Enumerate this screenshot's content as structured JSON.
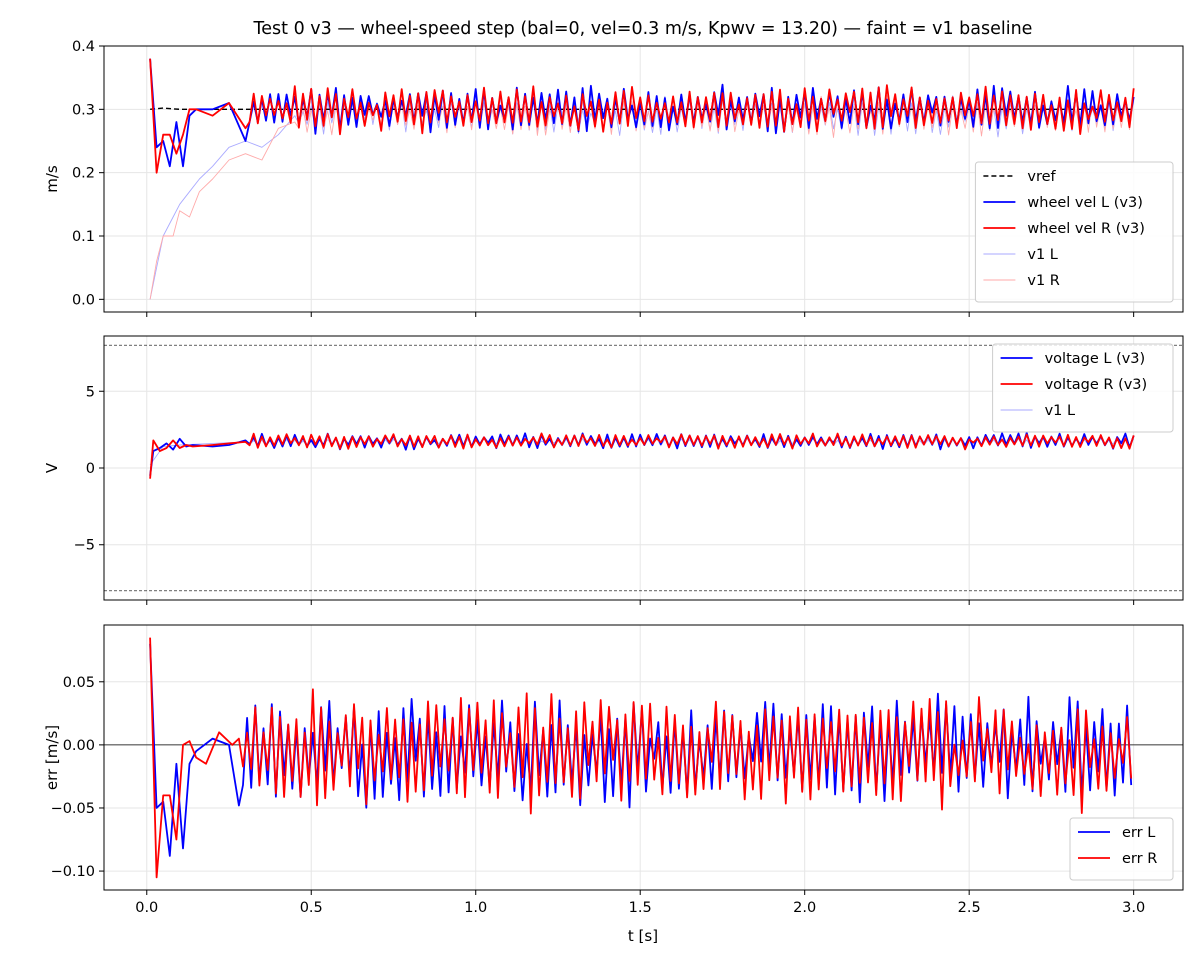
{
  "chart_data": {
    "title": "Test 0 v3 — wheel-speed step (bal=0, vel=0.3 m/s, Kpwv = 13.20) — faint = v1 baseline",
    "x_label": "t [s]",
    "x_range": [
      -0.13,
      3.15
    ],
    "x_ticks": [
      0.0,
      0.5,
      1.0,
      1.5,
      2.0,
      2.5,
      3.0
    ],
    "x_tick_labels": [
      "0.0",
      "0.5",
      "1.0",
      "1.5",
      "2.0",
      "2.5",
      "3.0"
    ],
    "colors": {
      "blue": "#0000ff",
      "red": "#ff0000",
      "faint_blue": "#aaaaff",
      "faint_red": "#ffaaaa",
      "black": "#000000",
      "grid": "#e6e6e6"
    },
    "panels": [
      {
        "type": "line",
        "ylabel": "m/s",
        "ylim": [
          -0.02,
          0.4
        ],
        "y_ticks": [
          0.0,
          0.1,
          0.2,
          0.3,
          0.4
        ],
        "y_tick_labels": [
          "0.0",
          "0.1",
          "0.2",
          "0.3",
          "0.4"
        ],
        "legend_position": "lower-right",
        "legend": [
          "vref",
          "wheel vel L (v3)",
          "wheel vel R (v3)",
          "v1 L",
          "v1 R"
        ],
        "series": [
          {
            "name": "vref",
            "color": "#000000",
            "style": "dashed",
            "x": [
              0.01,
              0.05,
              0.1,
              0.2,
              0.3,
              3.0
            ],
            "y": [
              0.3,
              0.302,
              0.3,
              0.3,
              0.3,
              0.3
            ]
          },
          {
            "name": "wheel vel L (v3)",
            "color": "#0000ff",
            "width": 1.8,
            "x": [
              0.01,
              0.03,
              0.05,
              0.07,
              0.09,
              0.11,
              0.13,
              0.15,
              0.2,
              0.25,
              0.3
            ],
            "y": [
              0.38,
              0.24,
              0.25,
              0.21,
              0.28,
              0.21,
              0.29,
              0.3,
              0.3,
              0.31,
              0.25
            ],
            "osc": {
              "t0": 0.3,
              "t1": 3.0,
              "dt": 0.0125,
              "center": 0.3,
              "amp": 0.032,
              "seed": 11
            }
          },
          {
            "name": "wheel vel R (v3)",
            "color": "#ff0000",
            "width": 1.8,
            "x": [
              0.01,
              0.03,
              0.05,
              0.07,
              0.09,
              0.11,
              0.13,
              0.15,
              0.2,
              0.25,
              0.3
            ],
            "y": [
              0.38,
              0.2,
              0.26,
              0.26,
              0.23,
              0.26,
              0.3,
              0.3,
              0.29,
              0.31,
              0.27
            ],
            "osc": {
              "t0": 0.3,
              "t1": 3.0,
              "dt": 0.0125,
              "center": 0.3,
              "amp": 0.034,
              "seed": 23
            }
          },
          {
            "name": "v1 L",
            "color": "#aaaaff",
            "width": 0.9,
            "x": [
              0.01,
              0.03,
              0.05,
              0.08,
              0.1,
              0.13,
              0.16,
              0.2,
              0.25,
              0.3,
              0.35,
              0.4,
              0.45
            ],
            "y": [
              0.0,
              0.05,
              0.1,
              0.13,
              0.15,
              0.17,
              0.19,
              0.21,
              0.24,
              0.25,
              0.24,
              0.26,
              0.29
            ],
            "osc": {
              "t0": 0.45,
              "t1": 3.0,
              "dt": 0.0125,
              "center": 0.29,
              "amp": 0.028,
              "seed": 37
            }
          },
          {
            "name": "v1 R",
            "color": "#ffaaaa",
            "width": 0.9,
            "x": [
              0.01,
              0.03,
              0.05,
              0.08,
              0.1,
              0.13,
              0.16,
              0.2,
              0.25,
              0.3,
              0.35,
              0.4,
              0.45
            ],
            "y": [
              0.0,
              0.06,
              0.1,
              0.1,
              0.14,
              0.13,
              0.17,
              0.19,
              0.22,
              0.23,
              0.22,
              0.27,
              0.28
            ],
            "osc": {
              "t0": 0.45,
              "t1": 3.0,
              "dt": 0.0125,
              "center": 0.29,
              "amp": 0.028,
              "seed": 53
            }
          }
        ]
      },
      {
        "type": "line",
        "ylabel": "V",
        "ylim": [
          -8.6,
          8.6
        ],
        "y_ticks": [
          -5,
          0,
          5
        ],
        "y_tick_labels": [
          "−5",
          "0",
          "5"
        ],
        "hlines": [
          8,
          -8
        ],
        "legend_position": "upper-right",
        "legend": [
          "voltage L (v3)",
          "voltage R (v3)",
          "v1 L"
        ],
        "series": [
          {
            "name": "voltage L (v3)",
            "color": "#0000ff",
            "width": 1.8,
            "x": [
              0.01,
              0.02,
              0.04,
              0.06,
              0.08,
              0.1,
              0.12,
              0.14,
              0.2,
              0.25,
              0.3
            ],
            "y": [
              -0.5,
              1.1,
              1.3,
              1.6,
              1.2,
              1.9,
              1.4,
              1.5,
              1.4,
              1.5,
              1.8
            ],
            "osc": {
              "t0": 0.3,
              "t1": 3.0,
              "dt": 0.0125,
              "center": 1.75,
              "amp": 0.45,
              "seed": 71
            }
          },
          {
            "name": "voltage R (v3)",
            "color": "#ff0000",
            "width": 1.8,
            "x": [
              0.01,
              0.02,
              0.04,
              0.06,
              0.08,
              0.1,
              0.12,
              0.14,
              0.2,
              0.25,
              0.3
            ],
            "y": [
              -0.7,
              1.8,
              1.1,
              1.3,
              1.8,
              1.3,
              1.5,
              1.4,
              1.5,
              1.6,
              1.7
            ],
            "osc": {
              "t0": 0.3,
              "t1": 3.0,
              "dt": 0.0125,
              "center": 1.75,
              "amp": 0.45,
              "seed": 89
            }
          },
          {
            "name": "v1 L",
            "color": "#aaaaff",
            "width": 0.9,
            "x": [
              0.01,
              0.05,
              0.1,
              0.2,
              0.3
            ],
            "y": [
              0.2,
              1.4,
              1.5,
              1.6,
              1.7
            ],
            "osc": {
              "t0": 0.3,
              "t1": 3.0,
              "dt": 0.0125,
              "center": 1.7,
              "amp": 0.25,
              "seed": 97
            }
          }
        ]
      },
      {
        "type": "line",
        "ylabel": "err [m/s]",
        "ylim": [
          -0.115,
          0.095
        ],
        "y_ticks": [
          -0.1,
          -0.05,
          0.0,
          0.05
        ],
        "y_tick_labels": [
          "−0.10",
          "−0.05",
          "0.00",
          "0.05"
        ],
        "hlines": [
          0
        ],
        "legend_position": "lower-right",
        "legend": [
          "err L",
          "err R"
        ],
        "series": [
          {
            "name": "err L",
            "color": "#0000ff",
            "width": 1.8,
            "x": [
              0.01,
              0.03,
              0.05,
              0.07,
              0.09,
              0.11,
              0.13,
              0.15,
              0.2,
              0.25,
              0.28
            ],
            "y": [
              0.08,
              -0.05,
              -0.045,
              -0.088,
              -0.015,
              -0.082,
              -0.015,
              -0.005,
              0.005,
              0.0,
              -0.048
            ],
            "osc": {
              "t0": 0.28,
              "t1": 3.0,
              "dt": 0.0125,
              "center": -0.005,
              "amp": 0.038,
              "seed": 131
            }
          },
          {
            "name": "err R",
            "color": "#ff0000",
            "width": 1.8,
            "x": [
              0.01,
              0.03,
              0.05,
              0.07,
              0.09,
              0.11,
              0.13,
              0.15,
              0.18,
              0.22,
              0.26,
              0.28
            ],
            "y": [
              0.085,
              -0.105,
              -0.04,
              -0.04,
              -0.075,
              0.0,
              0.003,
              -0.01,
              -0.015,
              0.01,
              0.0,
              0.005
            ],
            "osc": {
              "t0": 0.28,
              "t1": 3.0,
              "dt": 0.0125,
              "center": -0.005,
              "amp": 0.04,
              "seed": 151
            }
          }
        ]
      }
    ]
  }
}
